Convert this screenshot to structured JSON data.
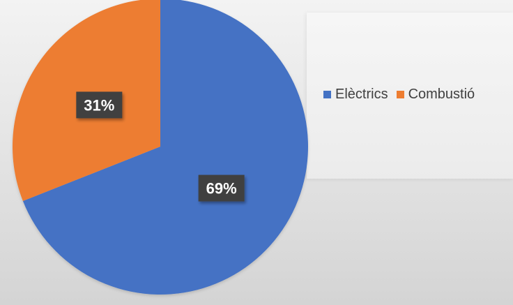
{
  "chart_data": {
    "type": "pie",
    "title": "",
    "categories": [
      "Elèctrics",
      "Combustió"
    ],
    "values": [
      69,
      31
    ],
    "data_labels": [
      "69%",
      "31%"
    ],
    "colors": [
      "#4472c4",
      "#ed7d31"
    ],
    "legend_position": "right",
    "start_angle_deg": 0,
    "direction": "clockwise"
  }
}
